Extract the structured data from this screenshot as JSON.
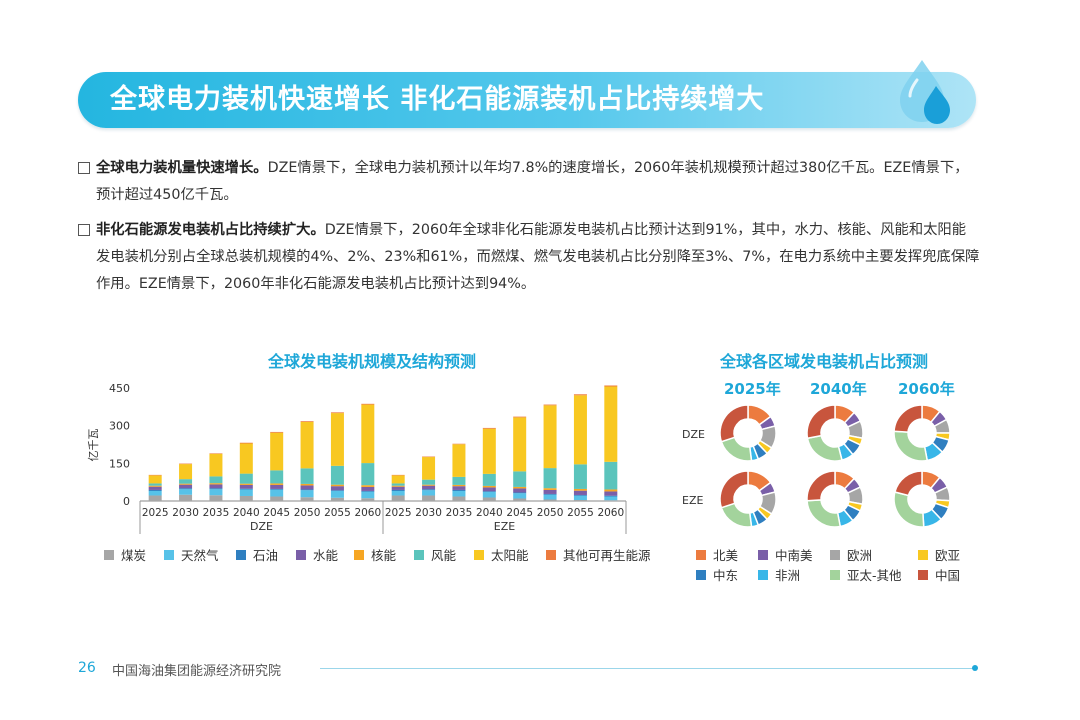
{
  "banner": {
    "title": "全球电力装机快速增长  非化石能源装机占比持续增大"
  },
  "paragraphs": [
    {
      "bold": "全球电力装机量快速增长。",
      "text": "DZE情景下，全球电力装机预计以年均7.8%的速度增长，2060年装机规模预计超过380亿千瓦。EZE情景下，预计超过450亿千瓦。"
    },
    {
      "bold": "非化石能源发电装机占比持续扩大。",
      "text": "DZE情景下，2060年全球非化石能源发电装机占比预计达到91%，其中，水力、核能、风能和太阳能发电装机分别占全球总装机规模的4%、2%、23%和61%，而燃煤、燃气发电装机占比分别降至3%、7%，在电力系统中主要发挥兜底保障作用。EZE情景下，2060年非化石能源发电装机占比预计达到94%。"
    }
  ],
  "chart_data": [
    {
      "type": "bar",
      "stacked": true,
      "title": "全球发电装机规模及结构预测",
      "ylabel": "亿千瓦",
      "ylim": [
        0,
        450
      ],
      "yticks": [
        0,
        150,
        300,
        450
      ],
      "groups": [
        {
          "name": "DZE",
          "categories": [
            "2025",
            "2030",
            "2035",
            "2040",
            "2045",
            "2050",
            "2055",
            "2060"
          ]
        },
        {
          "name": "EZE",
          "categories": [
            "2025",
            "2030",
            "2035",
            "2040",
            "2045",
            "2050",
            "2055",
            "2060"
          ]
        }
      ],
      "colors": [
        "#a6a6a6",
        "#57c2e8",
        "#2f7fc0",
        "#7a5fa8",
        "#f6a623",
        "#5bc4bc",
        "#f8c821",
        "#ec7b3f"
      ],
      "series": [
        {
          "name": "煤炭",
          "values": [
            22,
            25,
            23,
            20,
            18,
            15,
            13,
            11,
            22,
            22,
            18,
            14,
            10,
            6,
            4,
            3
          ]
        },
        {
          "name": "天然气",
          "values": [
            18,
            22,
            24,
            26,
            27,
            28,
            27,
            26,
            18,
            21,
            22,
            22,
            21,
            19,
            17,
            15
          ]
        },
        {
          "name": "石油",
          "values": [
            4,
            4,
            4,
            3,
            3,
            3,
            3,
            3,
            4,
            4,
            4,
            3,
            3,
            3,
            3,
            3
          ]
        },
        {
          "name": "水能",
          "values": [
            13,
            14,
            15,
            15,
            16,
            16,
            16,
            16,
            13,
            14,
            15,
            15,
            16,
            16,
            17,
            17
          ]
        },
        {
          "name": "核能",
          "values": [
            4,
            4,
            5,
            5,
            6,
            6,
            6,
            7,
            4,
            4,
            5,
            6,
            6,
            7,
            7,
            8
          ]
        },
        {
          "name": "风能",
          "values": [
            9,
            18,
            27,
            40,
            52,
            62,
            75,
            88,
            9,
            20,
            32,
            48,
            62,
            80,
            98,
            110
          ]
        },
        {
          "name": "太阳能",
          "values": [
            32,
            60,
            90,
            120,
            150,
            185,
            210,
            233,
            32,
            90,
            130,
            180,
            215,
            250,
            275,
            300
          ]
        },
        {
          "name": "其他可再生能源",
          "values": [
            2,
            2,
            2,
            3,
            3,
            3,
            3,
            3,
            2,
            2,
            2,
            3,
            3,
            3,
            4,
            4
          ]
        }
      ]
    },
    {
      "type": "pie",
      "title": "全球各区域发电装机占比预测",
      "years": [
        "2025年",
        "2040年",
        "2060年"
      ],
      "scenarios": [
        "DZE",
        "EZE"
      ],
      "regions": [
        "北美",
        "中南美",
        "欧洲",
        "欧亚",
        "中东",
        "非洲",
        "亚太-其他",
        "中国"
      ],
      "colors": [
        "#ec7b3f",
        "#7a5fa8",
        "#a6a6a6",
        "#f8c821",
        "#2f7fc0",
        "#38b6e8",
        "#a3d39c",
        "#c8553d"
      ],
      "values": {
        "DZE": [
          [
            15,
            6,
            13,
            4,
            6,
            4,
            22,
            30
          ],
          [
            12,
            6,
            10,
            4,
            7,
            7,
            26,
            28
          ],
          [
            11,
            6,
            8,
            4,
            8,
            10,
            29,
            24
          ]
        ],
        "EZE": [
          [
            15,
            6,
            13,
            4,
            6,
            4,
            22,
            30
          ],
          [
            12,
            6,
            10,
            4,
            7,
            8,
            27,
            26
          ],
          [
            11,
            7,
            8,
            4,
            8,
            11,
            30,
            21
          ]
        ]
      }
    }
  ],
  "footer": {
    "page": "26",
    "org": "中国海油集团能源经济研究院"
  }
}
